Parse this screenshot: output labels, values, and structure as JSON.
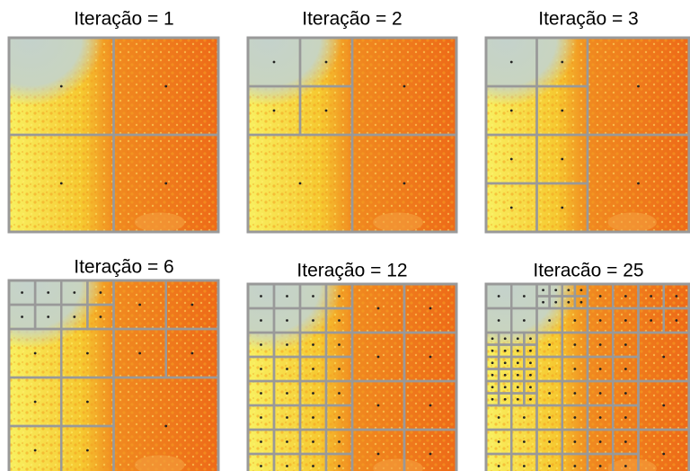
{
  "panels": [
    {
      "title": "Iteração = 1"
    },
    {
      "title": "Iteração = 2"
    },
    {
      "title": "Iteração = 3"
    },
    {
      "title": "Iteração = 6"
    },
    {
      "title": "Iteração = 12"
    },
    {
      "title": "Iteracão = 25"
    }
  ]
}
